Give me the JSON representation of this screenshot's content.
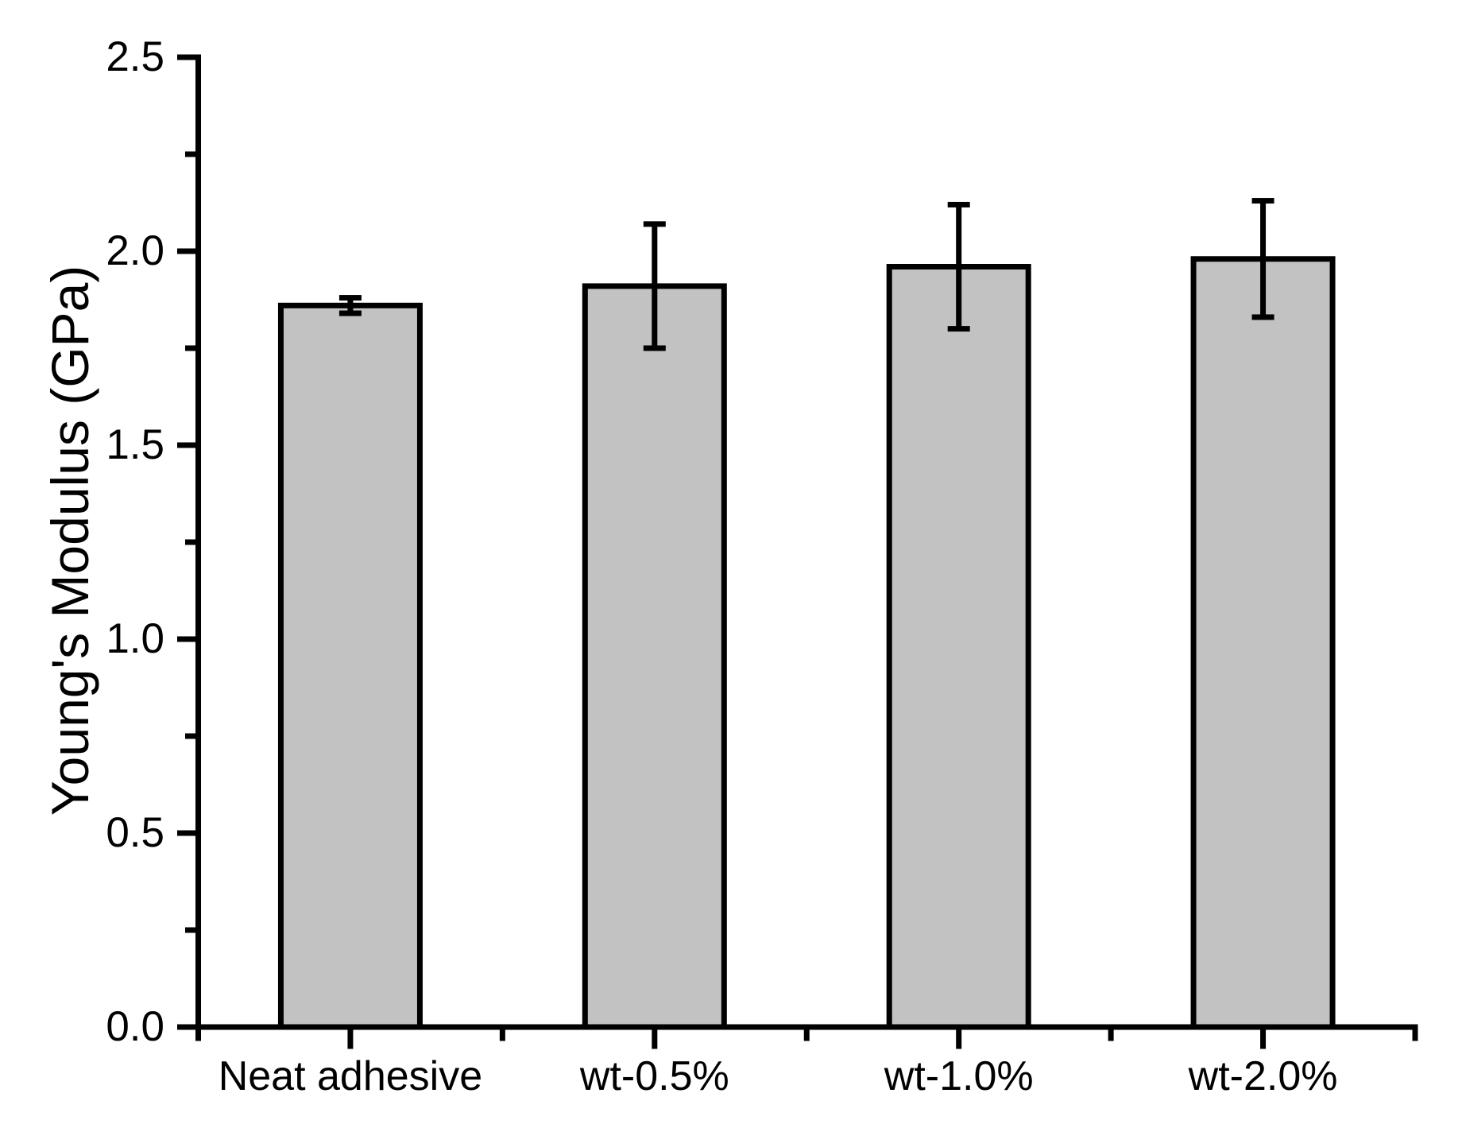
{
  "page": {
    "background_color": "#ffffff",
    "text_color": "#000000"
  },
  "chart_data": {
    "type": "bar",
    "title": "",
    "categories": [
      "Neat adhesive",
      "wt-0.5%",
      "wt-1.0%",
      "wt-2.0%"
    ],
    "values": [
      1.86,
      1.91,
      1.96,
      1.98
    ],
    "error_plus": [
      0.02,
      0.16,
      0.16,
      0.15
    ],
    "error_minus": [
      0.02,
      0.16,
      0.16,
      0.15
    ],
    "xlabel": "",
    "ylabel": "Young's Modulus (GPa)",
    "ylim": [
      0.0,
      2.5
    ],
    "ytick_interval": 0.5,
    "yticks": [
      "0.0",
      "0.5",
      "1.0",
      "1.5",
      "2.0",
      "2.5"
    ],
    "minor_ytick_values": [
      0.25,
      0.75,
      1.25,
      1.75,
      2.25
    ],
    "grid": false,
    "legend": null,
    "bar_fill_color": "#c2c2c2",
    "bar_edge_color": "#000000",
    "axis_color": "#000000"
  }
}
